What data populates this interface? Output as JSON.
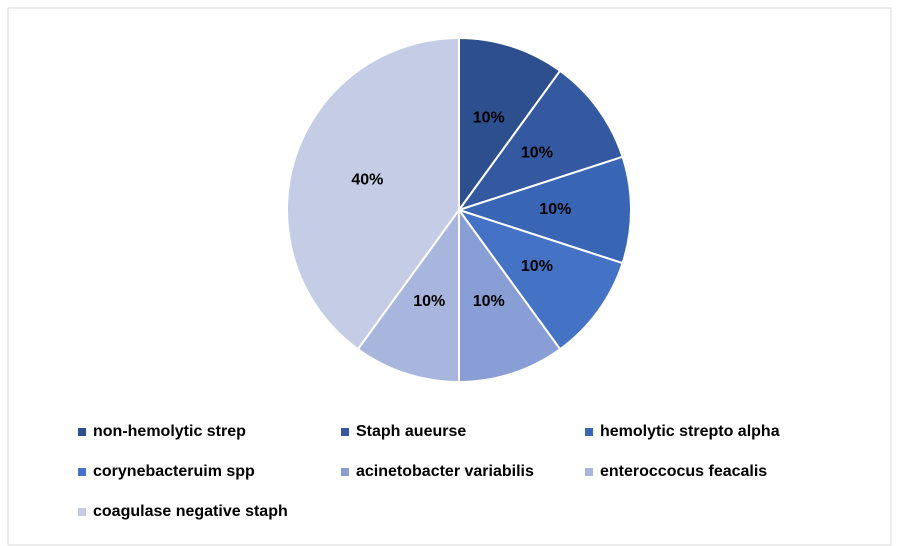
{
  "chart_data": {
    "type": "pie",
    "categories": [
      "non-hemolytic strep",
      "Staph aueurse",
      "hemolytic strepto alpha",
      "corynebacteruim spp",
      "acinetobacter variabilis",
      "enteroccocus feacalis",
      "coagulase negative staph"
    ],
    "values": [
      10,
      10,
      10,
      10,
      10,
      10,
      40
    ],
    "value_labels": [
      "10%",
      "10%",
      "10%",
      "10%",
      "10%",
      "10%",
      "40%"
    ],
    "colors": [
      "#2e4f8e",
      "#3459a1",
      "#3965b5",
      "#4472c4",
      "#8a9ed6",
      "#a8b6de",
      "#c5cde6"
    ]
  }
}
